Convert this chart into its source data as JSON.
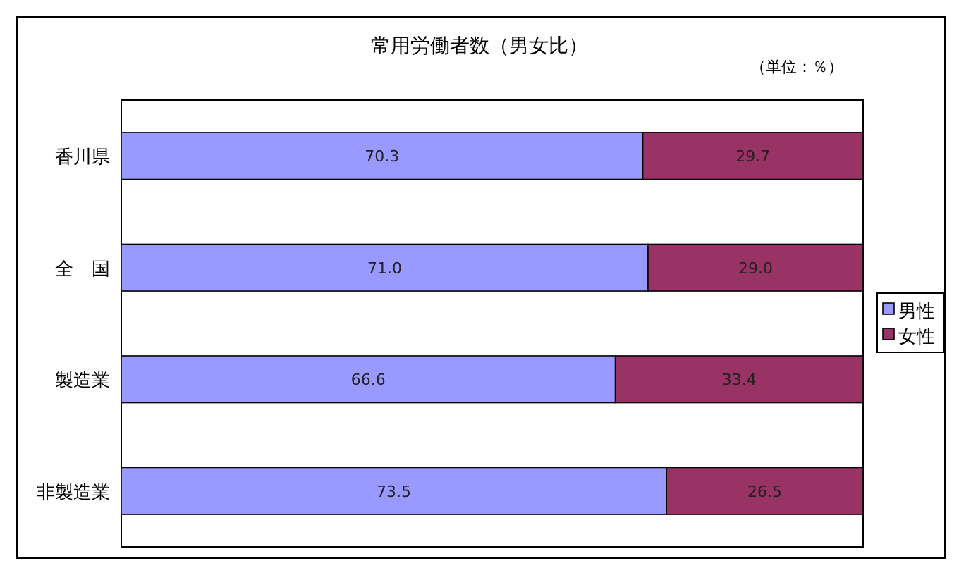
{
  "chart_data": {
    "type": "bar",
    "orientation": "horizontal",
    "stacked": true,
    "title": "常用労働者数（男女比）",
    "annotations": [
      "（単位：％）"
    ],
    "categories": [
      "香川県",
      "全　国",
      "製造業",
      "非製造業"
    ],
    "series": [
      {
        "name": "男性",
        "color": "#9999ff",
        "values": [
          70.3,
          71.0,
          66.6,
          73.5
        ],
        "value_labels": [
          "70.3",
          "71.0",
          "66.6",
          "73.5"
        ]
      },
      {
        "name": "女性",
        "color": "#993366",
        "values": [
          29.7,
          29.0,
          33.4,
          26.5
        ],
        "value_labels": [
          "29.7",
          "29.0",
          "33.4",
          "26.5"
        ]
      }
    ],
    "xlim": [
      0,
      100
    ],
    "legend": "right"
  }
}
